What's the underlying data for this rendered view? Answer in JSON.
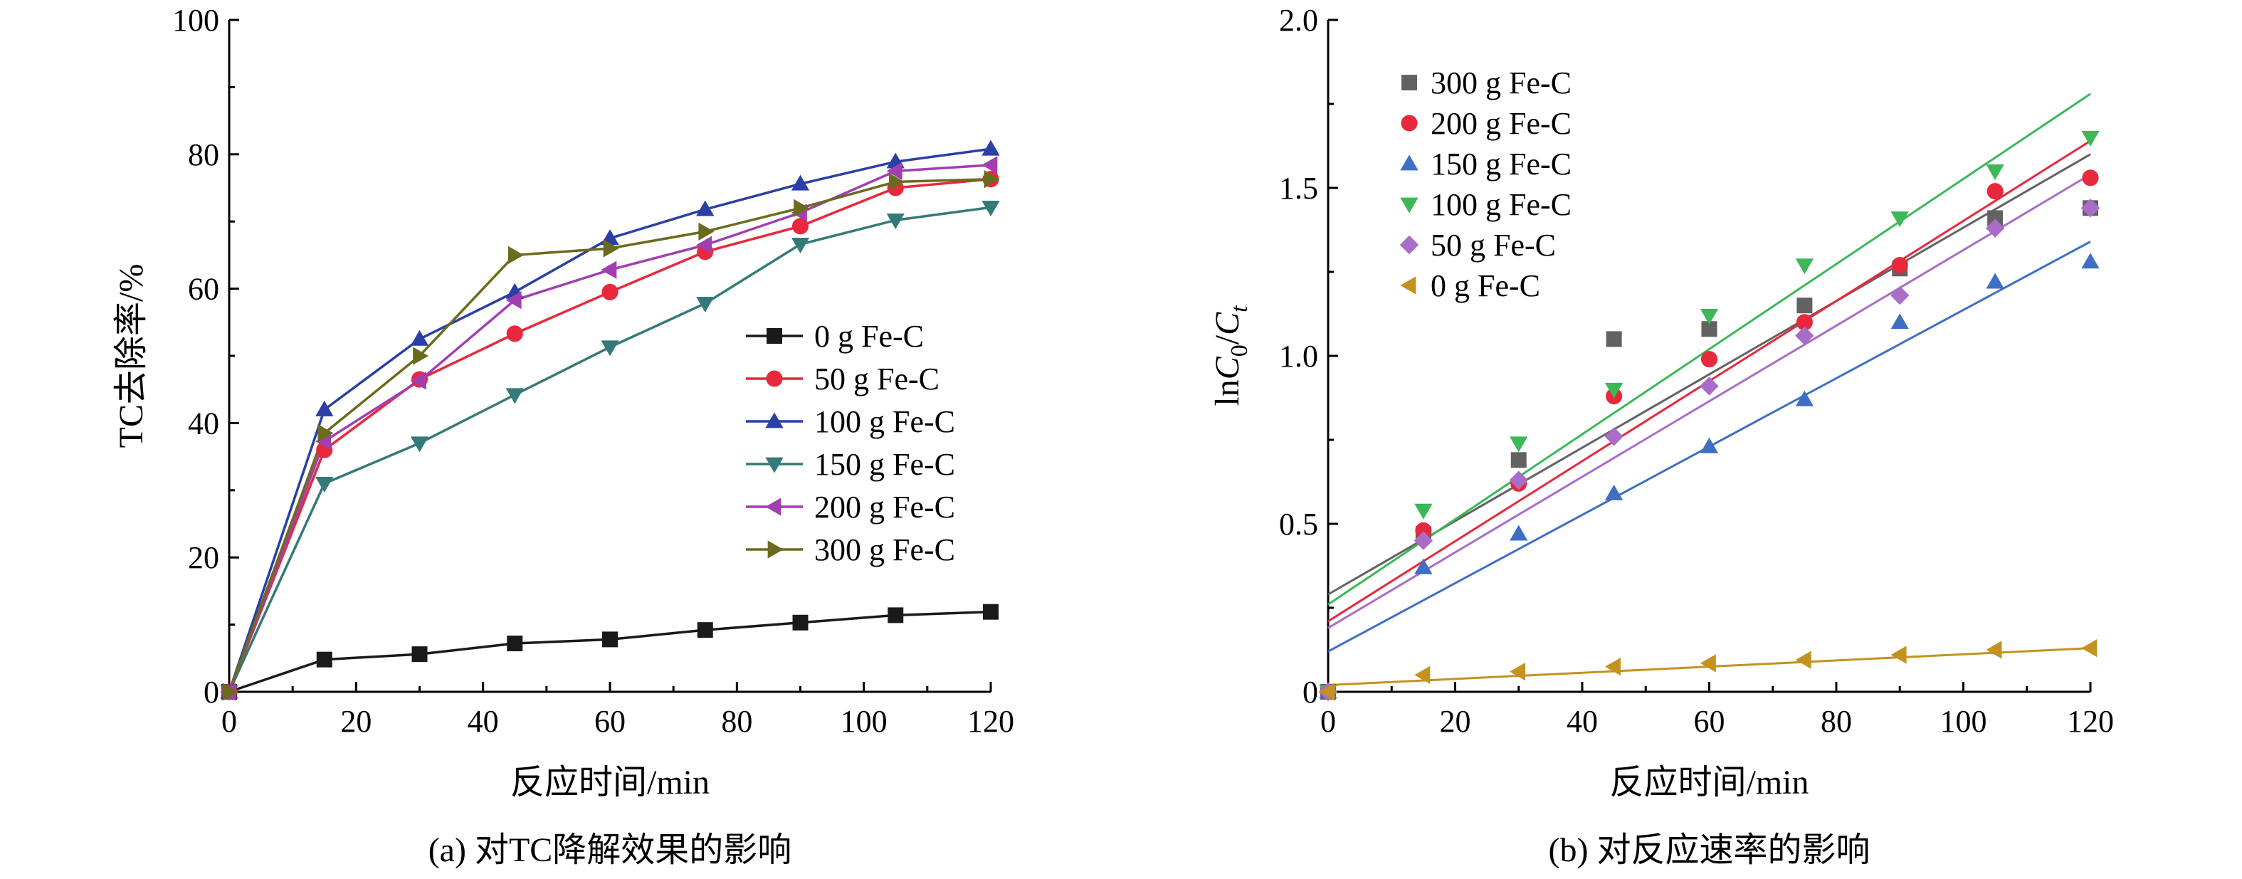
{
  "chart_data": [
    {
      "type": "line",
      "xlabel": "反应时间/min",
      "ylabel": "TC去除率/%",
      "caption": "(a) 对TC降解效果的影响",
      "xlim": [
        0,
        120
      ],
      "ylim": [
        0,
        100
      ],
      "xticks": [
        0,
        20,
        40,
        60,
        80,
        100,
        120
      ],
      "yticks": [
        0,
        20,
        40,
        60,
        80,
        100
      ],
      "legend_position": "center-right",
      "x": [
        0,
        15,
        30,
        45,
        60,
        75,
        90,
        105,
        120
      ],
      "series": [
        {
          "name": "0 g Fe-C",
          "marker": "square",
          "color": "#1a1a1a",
          "values": [
            0,
            4.8,
            5.6,
            7.2,
            7.8,
            9.2,
            10.3,
            11.4,
            11.9
          ]
        },
        {
          "name": "50 g Fe-C",
          "marker": "circle",
          "color": "#e8283c",
          "values": [
            0,
            36.0,
            46.5,
            53.3,
            59.5,
            65.5,
            69.3,
            75.0,
            76.3
          ]
        },
        {
          "name": "100 g Fe-C",
          "marker": "triangle-up",
          "color": "#2b3fa6",
          "values": [
            0,
            42.0,
            52.5,
            59.5,
            67.5,
            71.8,
            75.6,
            78.9,
            80.8
          ]
        },
        {
          "name": "150 g Fe-C",
          "marker": "triangle-down",
          "color": "#347a78",
          "values": [
            0,
            31.0,
            37.0,
            44.2,
            51.3,
            57.8,
            66.6,
            70.2,
            72.1
          ]
        },
        {
          "name": "200 g Fe-C",
          "marker": "triangle-left",
          "color": "#a13fb0",
          "values": [
            0,
            37.3,
            46.3,
            58.3,
            62.8,
            66.5,
            71.3,
            77.5,
            78.4
          ]
        },
        {
          "name": "300 g Fe-C",
          "marker": "triangle-right",
          "color": "#6b6b1e",
          "values": [
            0,
            38.5,
            50.0,
            65.0,
            66.0,
            68.5,
            72.0,
            75.9,
            76.3
          ]
        }
      ]
    },
    {
      "type": "scatter",
      "xlabel": "反应时间/min",
      "ylabel_parts": [
        "ln",
        "C",
        "0",
        "/",
        "C",
        "t"
      ],
      "caption": "(b) 对反应速率的影响",
      "xlim": [
        0,
        120
      ],
      "ylim": [
        0,
        2.0
      ],
      "xticks": [
        0,
        20,
        40,
        60,
        80,
        100,
        120
      ],
      "yticks": [
        "0",
        "0.5",
        "1.0",
        "1.5",
        "2.0"
      ],
      "legend_position": "top-left",
      "x": [
        0,
        15,
        30,
        45,
        60,
        75,
        90,
        105,
        120
      ],
      "series": [
        {
          "name": "300 g Fe-C",
          "marker": "square",
          "color": "#626262",
          "values": [
            0,
            0.47,
            0.69,
            1.05,
            1.08,
            1.15,
            1.26,
            1.41,
            1.44
          ],
          "fit": [
            0.29,
            1.6
          ]
        },
        {
          "name": "200 g Fe-C",
          "marker": "circle",
          "color": "#e8283c",
          "values": [
            0,
            0.48,
            0.62,
            0.88,
            0.99,
            1.1,
            1.27,
            1.49,
            1.53
          ],
          "fit": [
            0.21,
            1.64
          ]
        },
        {
          "name": "150 g Fe-C",
          "marker": "triangle-up",
          "color": "#3f6fc4",
          "values": [
            0,
            0.37,
            0.47,
            0.59,
            0.73,
            0.87,
            1.1,
            1.22,
            1.28
          ],
          "fit": [
            0.12,
            1.34
          ]
        },
        {
          "name": "100 g Fe-C",
          "marker": "triangle-down",
          "color": "#3cb858",
          "values": [
            0,
            0.54,
            0.74,
            0.9,
            1.12,
            1.27,
            1.41,
            1.55,
            1.65
          ],
          "fit": [
            0.26,
            1.78
          ]
        },
        {
          "name": "50 g Fe-C",
          "marker": "diamond",
          "color": "#a96dc9",
          "values": [
            0,
            0.45,
            0.63,
            0.76,
            0.91,
            1.06,
            1.18,
            1.38,
            1.44
          ],
          "fit": [
            0.19,
            1.54
          ]
        },
        {
          "name": "0 g Fe-C",
          "marker": "triangle-left",
          "color": "#c4921e",
          "values": [
            0,
            0.05,
            0.06,
            0.075,
            0.085,
            0.095,
            0.11,
            0.125,
            0.13
          ],
          "fit": [
            0.02,
            0.13
          ]
        }
      ]
    }
  ]
}
